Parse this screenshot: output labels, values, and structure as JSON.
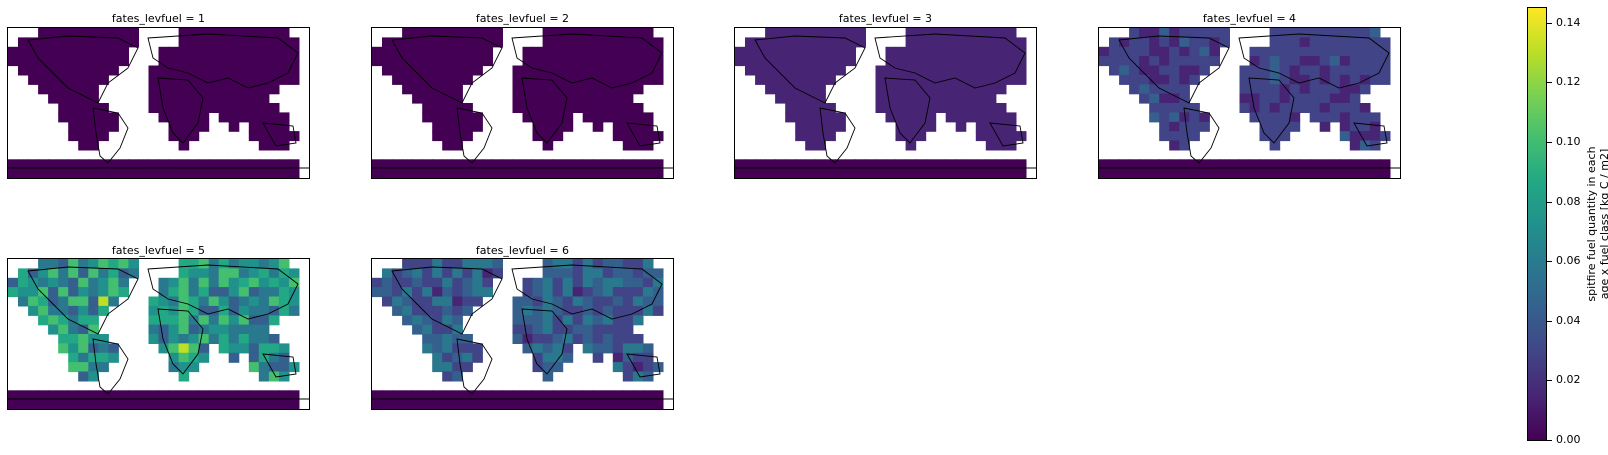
{
  "panels": [
    {
      "title": "fates_levfuel = 1",
      "level": 1
    },
    {
      "title": "fates_levfuel = 2",
      "level": 2
    },
    {
      "title": "fates_levfuel = 3",
      "level": 3
    },
    {
      "title": "fates_levfuel = 4",
      "level": 4
    },
    {
      "title": "fates_levfuel = 5",
      "level": 5
    },
    {
      "title": "fates_levfuel = 6",
      "level": 6
    }
  ],
  "colorbar": {
    "label_line1": "spitfire fuel quantity in each",
    "label_line2": "age x fuel class [kg C / m2]",
    "min": 0.0,
    "max": 0.145,
    "ticks": [
      "0.00",
      "0.02",
      "0.04",
      "0.06",
      "0.08",
      "0.10",
      "0.12",
      "0.14"
    ],
    "tick_values": [
      0.0,
      0.02,
      0.04,
      0.06,
      0.08,
      0.1,
      0.12,
      0.14
    ],
    "colormap": "viridis"
  }
}
